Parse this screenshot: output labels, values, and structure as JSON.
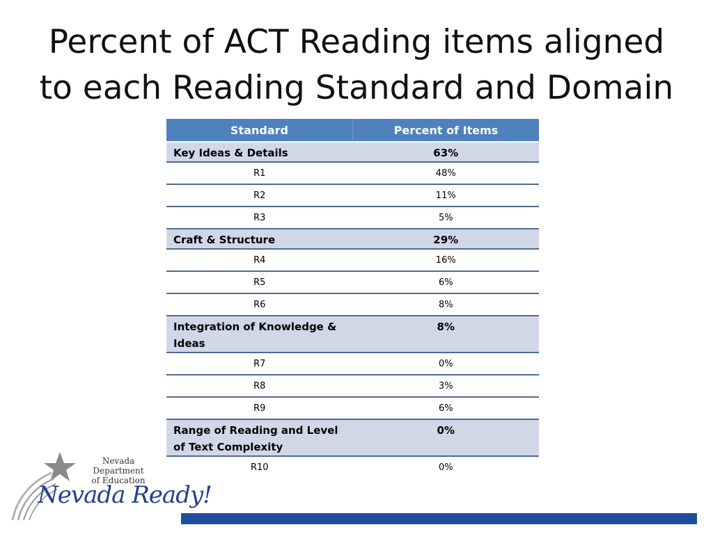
{
  "title": {
    "line1": "Percent of ACT Reading items aligned",
    "line2": "to each Reading Standard and Domain"
  },
  "table": {
    "headers": [
      "Standard",
      "Percent of Items"
    ],
    "rows": [
      {
        "type": "domain",
        "name": "Key Ideas & Details",
        "pct": "63%"
      },
      {
        "type": "std",
        "name": "R1",
        "pct": "48%"
      },
      {
        "type": "std",
        "name": "R2",
        "pct": "11%"
      },
      {
        "type": "std",
        "name": "R3",
        "pct": "5%"
      },
      {
        "type": "domain",
        "name": "Craft & Structure",
        "pct": "29%"
      },
      {
        "type": "std",
        "name": "R4",
        "pct": "16%"
      },
      {
        "type": "std",
        "name": "R5",
        "pct": "6%"
      },
      {
        "type": "std",
        "name": "R6",
        "pct": "8%"
      },
      {
        "type": "domain",
        "name": "Integration of Knowledge & Ideas",
        "pct": "8%"
      },
      {
        "type": "std",
        "name": "R7",
        "pct": "0%"
      },
      {
        "type": "std",
        "name": "R8",
        "pct": "3%"
      },
      {
        "type": "std",
        "name": "R9",
        "pct": "6%"
      },
      {
        "type": "domain",
        "name": "Range of Reading and Level of Text Complexity",
        "pct": "0%"
      },
      {
        "type": "std",
        "name": "R10",
        "pct": "0%"
      }
    ]
  },
  "logo": {
    "dept_line1": "Nevada Department",
    "dept_line2": "of Education",
    "tagline": "Nevada Ready!",
    "colors": {
      "star": "#8a8a8a",
      "swoosh": "#9aa0a6",
      "text": "#23408e"
    }
  },
  "colors": {
    "header": "#4f81bd",
    "domain_row": "#d0d8e8",
    "bar": "#1f4e9a"
  }
}
